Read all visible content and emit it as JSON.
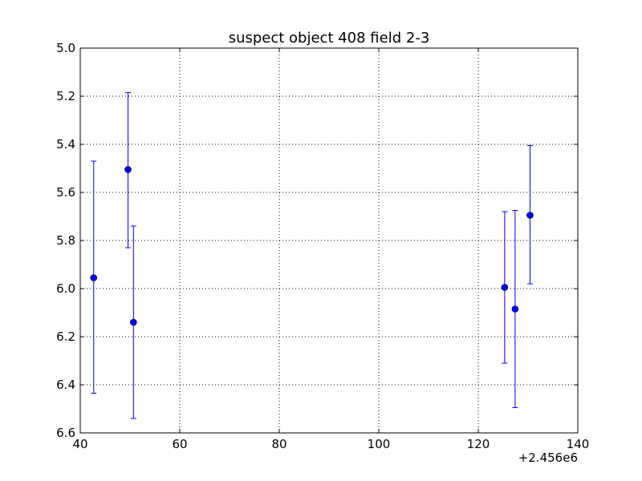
{
  "chart_data": {
    "type": "scatter",
    "title": "suspect object 408 field 2-3",
    "xlabel": "",
    "ylabel": "",
    "x_offset_label": "+2.456e6",
    "xlim": [
      40,
      140
    ],
    "ylim": [
      6.6,
      5.0
    ],
    "y_inverted": true,
    "grid": true,
    "x_ticks": [
      40,
      60,
      80,
      100,
      120,
      140
    ],
    "x_tick_labels": [
      "40",
      "60",
      "80",
      "100",
      "120",
      "140"
    ],
    "y_ticks": [
      5.0,
      5.2,
      5.4,
      5.6,
      5.8,
      6.0,
      6.2,
      6.4,
      6.6
    ],
    "y_tick_labels": [
      "5.0",
      "5.2",
      "5.4",
      "5.6",
      "5.8",
      "6.0",
      "6.2",
      "6.4",
      "6.6"
    ],
    "marker_color": "#0000ff",
    "points": [
      {
        "x": 42.7,
        "y": 5.955,
        "ylow": 5.47,
        "yhigh": 6.435
      },
      {
        "x": 49.6,
        "y": 5.505,
        "ylow": 5.185,
        "yhigh": 5.83
      },
      {
        "x": 50.7,
        "y": 6.14,
        "ylow": 5.74,
        "yhigh": 6.54
      },
      {
        "x": 125.3,
        "y": 5.995,
        "ylow": 5.68,
        "yhigh": 6.31
      },
      {
        "x": 127.4,
        "y": 6.085,
        "ylow": 5.675,
        "yhigh": 6.495
      },
      {
        "x": 130.4,
        "y": 5.695,
        "ylow": 5.405,
        "yhigh": 5.98
      }
    ]
  }
}
